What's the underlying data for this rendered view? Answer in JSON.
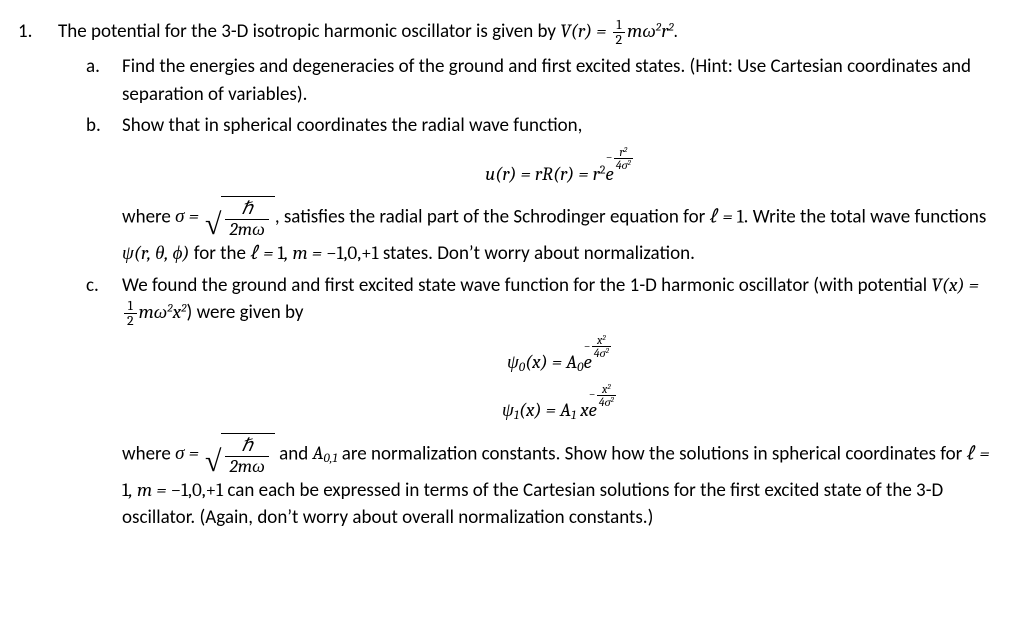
{
  "problem": {
    "number": "1.",
    "stem_prefix": "The potential for the 3-D isotropic harmonic oscillator is given by ",
    "stem_eq": "V(r) = ½ mω²r².",
    "parts": {
      "a": {
        "letter": "a.",
        "text": "Find the energies and degeneracies of the ground and first excited states.  (Hint: Use Cartesian coordinates and separation of variables)."
      },
      "b": {
        "letter": "b.",
        "intro": "Show that in spherical coordinates the radial wave function,",
        "eq_block": "u(r) = rR(r) = r² e^{-r²/4σ²}",
        "where_prefix": "where ",
        "sigma_eq": "σ = √(ħ/2mω)",
        "where_suffix": ", satisfies the radial part of the Schrodinger equation for ",
        "ell_eq": "ℓ = 1",
        "after_ell": ".  Write the total wave functions ",
        "psi_eq": "ψ(r, θ, ϕ)",
        "for_states": " for the ",
        "states": "ℓ = 1, m = −1,0,+1",
        "tail": " states.  Don’t worry about normalization."
      },
      "c": {
        "letter": "c.",
        "line1_pre": "We found the ground and first excited state wave function for the 1-D harmonic oscillator (with potential ",
        "vx": "V(x) = ½ mω²x²",
        "line1_post": ") were given by",
        "psi0": "ψ₀(x) = A₀ e^{-x²/4σ²}",
        "psi1": "ψ₁(x) = A₁ x e^{-x²/4σ²}",
        "where_prefix": "where ",
        "sigma_eq": "σ = √(ħ/2mω)",
        "and_text": " and ",
        "a01": "A₀,₁",
        "norm_text": " are normalization constants.  Show how the solutions in spherical coordinates for ",
        "states": "ℓ = 1, m = −1,0,+1",
        "tail": " can each be expressed in terms of the Cartesian solutions for the first excited state of the 3-D oscillator.  (Again, don’t worry about overall normalization constants.)"
      }
    }
  },
  "style": {
    "text_color": "#000000",
    "background": "#ffffff",
    "font_family": "Calibri",
    "font_size_pt": 14,
    "math_font": "Cambria Math"
  }
}
